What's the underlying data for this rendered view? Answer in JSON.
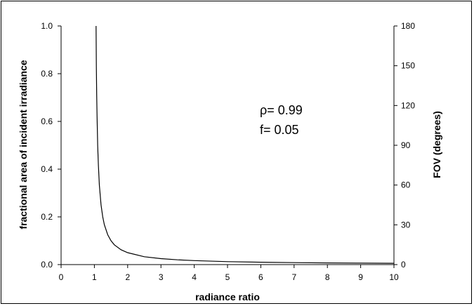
{
  "chart_data": {
    "type": "line",
    "xlabel": "radiance ratio",
    "ylabel_left": "fractional area of incident irradiance",
    "ylabel_right": "FOV (degrees)",
    "xlim": [
      0,
      10
    ],
    "ylim_left": [
      0.0,
      1.0
    ],
    "ylim_right": [
      0,
      180
    ],
    "x_ticks": [
      "0",
      "1",
      "2",
      "3",
      "4",
      "5",
      "6",
      "7",
      "8",
      "9",
      "10"
    ],
    "y_left_ticks": [
      "0.0",
      "0.2",
      "0.4",
      "0.6",
      "0.8",
      "1.0"
    ],
    "y_right_ticks": [
      "0",
      "30",
      "60",
      "90",
      "120",
      "150",
      "180"
    ],
    "annotations": [
      "ρ= 0.99",
      "f= 0.05"
    ],
    "grid": false,
    "series": [
      {
        "x": [
          1.05,
          1.06,
          1.07,
          1.08,
          1.1,
          1.12,
          1.15,
          1.2,
          1.25,
          1.3,
          1.4,
          1.5,
          1.6,
          1.8,
          2.0,
          2.5,
          3.0,
          3.5,
          4.0,
          5.0,
          6.0,
          7.0,
          8.0,
          9.0,
          10.0
        ],
        "y": [
          1.0,
          0.83,
          0.71,
          0.625,
          0.5,
          0.417,
          0.333,
          0.25,
          0.2,
          0.167,
          0.125,
          0.1,
          0.083,
          0.0625,
          0.05,
          0.033,
          0.025,
          0.02,
          0.0167,
          0.0125,
          0.01,
          0.0083,
          0.0071,
          0.00625,
          0.0056
        ]
      }
    ]
  }
}
